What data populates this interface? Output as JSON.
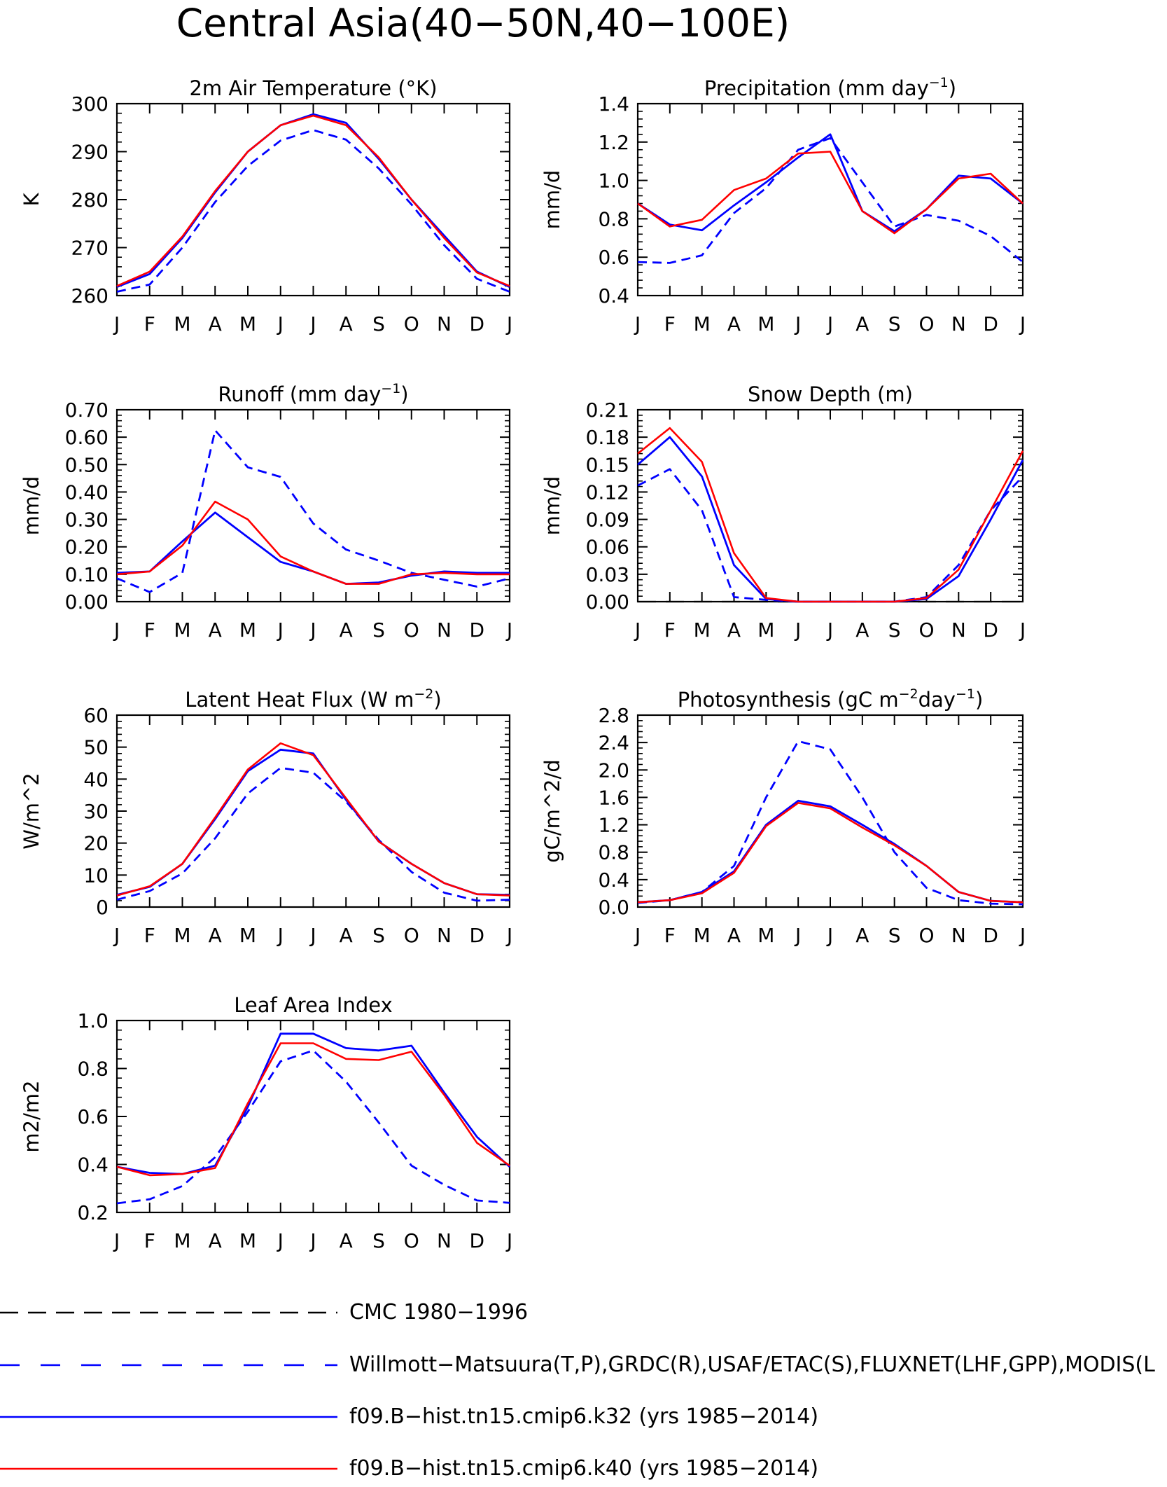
{
  "figure": {
    "title": "Central Asia(40−50N,40−100E)",
    "months": [
      "J",
      "F",
      "M",
      "A",
      "M",
      "J",
      "J",
      "A",
      "S",
      "O",
      "N",
      "D",
      "J"
    ]
  },
  "legend": [
    {
      "label": "CMC 1980−1996",
      "color": "#000000",
      "style": "dashed-long"
    },
    {
      "label": "Willmott−Matsuura(T,P),GRDC(R),USAF/ETAC(S),FLUXNET(LHF,GPP),MODIS(L",
      "color": "#0000ff",
      "style": "dashed"
    },
    {
      "label": "f09.B−hist.tn15.cmip6.k32 (yrs 1985−2014)",
      "color": "#0000ff",
      "style": "solid"
    },
    {
      "label": "f09.B−hist.tn15.cmip6.k40 (yrs 1985−2014)",
      "color": "#ff0000",
      "style": "solid"
    }
  ],
  "chart_data": [
    {
      "type": "line",
      "title": "2m Air Temperature (°K)",
      "ylabel": "K",
      "ylim": [
        260,
        300
      ],
      "yticks": [
        "260",
        "270",
        "280",
        "290",
        "300"
      ],
      "x": [
        "J",
        "F",
        "M",
        "A",
        "M",
        "J",
        "J",
        "A",
        "S",
        "O",
        "N",
        "D",
        "J"
      ],
      "series": [
        {
          "style": "obs",
          "color": "#0000ff",
          "values": [
            260.8,
            262.3,
            270.0,
            279.5,
            287.0,
            292.3,
            294.5,
            292.5,
            286.5,
            279.0,
            270.5,
            263.5,
            260.8
          ]
        },
        {
          "style": "k32",
          "color": "#0000ff",
          "values": [
            261.8,
            264.5,
            272.0,
            281.5,
            290.0,
            295.5,
            297.8,
            296.0,
            288.5,
            280.0,
            272.5,
            265.0,
            261.8
          ]
        },
        {
          "style": "k40",
          "color": "#ff0000",
          "values": [
            262.0,
            265.0,
            272.3,
            281.8,
            290.0,
            295.5,
            297.5,
            295.5,
            288.8,
            280.0,
            272.0,
            264.8,
            262.0
          ]
        }
      ]
    },
    {
      "type": "line",
      "title": "Precipitation (mm day",
      "title_sup": "−1",
      "title_end": ")",
      "ylabel": "mm/d",
      "ylim": [
        0.4,
        1.4
      ],
      "yticks": [
        "0.4",
        "0.6",
        "0.8",
        "1.0",
        "1.2",
        "1.4"
      ],
      "x": [
        "J",
        "F",
        "M",
        "A",
        "M",
        "J",
        "J",
        "A",
        "S",
        "O",
        "N",
        "D",
        "J"
      ],
      "series": [
        {
          "style": "obs",
          "color": "#0000ff",
          "values": [
            0.575,
            0.57,
            0.61,
            0.83,
            0.96,
            1.16,
            1.22,
            0.99,
            0.76,
            0.82,
            0.79,
            0.71,
            0.575
          ]
        },
        {
          "style": "k32",
          "color": "#0000ff",
          "values": [
            0.88,
            0.77,
            0.74,
            0.87,
            0.99,
            1.12,
            1.24,
            0.84,
            0.735,
            0.85,
            1.025,
            1.01,
            0.88
          ]
        },
        {
          "style": "k40",
          "color": "#ff0000",
          "values": [
            0.88,
            0.76,
            0.795,
            0.95,
            1.01,
            1.14,
            1.15,
            0.84,
            0.725,
            0.85,
            1.01,
            1.035,
            0.88
          ]
        }
      ]
    },
    {
      "type": "line",
      "title": "Runoff (mm day",
      "title_sup": "−1",
      "title_end": ")",
      "ylabel": "mm/d",
      "ylim": [
        0.0,
        0.7
      ],
      "yticks": [
        "0.00",
        "0.10",
        "0.20",
        "0.30",
        "0.40",
        "0.50",
        "0.60",
        "0.70"
      ],
      "x": [
        "J",
        "F",
        "M",
        "A",
        "M",
        "J",
        "J",
        "A",
        "S",
        "O",
        "N",
        "D",
        "J"
      ],
      "series": [
        {
          "style": "obs",
          "color": "#0000ff",
          "values": [
            0.085,
            0.035,
            0.105,
            0.625,
            0.49,
            0.455,
            0.285,
            0.19,
            0.15,
            0.105,
            0.08,
            0.055,
            0.085
          ]
        },
        {
          "style": "k32",
          "color": "#0000ff",
          "values": [
            0.105,
            0.11,
            0.22,
            0.325,
            0.235,
            0.145,
            0.11,
            0.065,
            0.07,
            0.095,
            0.11,
            0.105,
            0.105
          ]
        },
        {
          "style": "k40",
          "color": "#ff0000",
          "values": [
            0.1,
            0.11,
            0.205,
            0.365,
            0.3,
            0.165,
            0.11,
            0.065,
            0.065,
            0.1,
            0.105,
            0.1,
            0.1
          ]
        }
      ]
    },
    {
      "type": "line",
      "title": "Snow Depth (m)",
      "ylabel": "mm/d",
      "ylim": [
        0.0,
        0.21
      ],
      "yticks": [
        "0.00",
        "0.03",
        "0.06",
        "0.09",
        "0.12",
        "0.15",
        "0.18",
        "0.21"
      ],
      "x": [
        "J",
        "F",
        "M",
        "A",
        "M",
        "J",
        "J",
        "A",
        "S",
        "O",
        "N",
        "D",
        "J"
      ],
      "series": [
        {
          "style": "cmc",
          "color": "#000000",
          "values": [
            0,
            0,
            0,
            0,
            0,
            0,
            0,
            0,
            0,
            0,
            0,
            0,
            0
          ]
        },
        {
          "style": "obs",
          "color": "#0000ff",
          "values": [
            0.127,
            0.145,
            0.1,
            0.005,
            0.002,
            0.0,
            0.0,
            0.0,
            0.0,
            0.005,
            0.04,
            0.1,
            0.137
          ]
        },
        {
          "style": "k32",
          "color": "#0000ff",
          "values": [
            0.15,
            0.18,
            0.137,
            0.04,
            0.003,
            0.0,
            0.0,
            0.0,
            0.0,
            0.003,
            0.028,
            0.09,
            0.155
          ]
        },
        {
          "style": "k40",
          "color": "#ff0000",
          "values": [
            0.162,
            0.19,
            0.153,
            0.053,
            0.004,
            0.0,
            0.0,
            0.0,
            0.0,
            0.004,
            0.035,
            0.1,
            0.165
          ]
        }
      ]
    },
    {
      "type": "line",
      "title": "Latent Heat Flux (W m",
      "title_sup": "−2",
      "title_end": ")",
      "ylabel": "W/m^2",
      "ylim": [
        0,
        60
      ],
      "yticks": [
        "0",
        "10",
        "20",
        "30",
        "40",
        "50",
        "60"
      ],
      "x": [
        "J",
        "F",
        "M",
        "A",
        "M",
        "J",
        "J",
        "A",
        "S",
        "O",
        "N",
        "D",
        "J"
      ],
      "series": [
        {
          "style": "obs",
          "color": "#0000ff",
          "values": [
            2.3,
            5.0,
            10.5,
            21.5,
            35.5,
            43.5,
            42.0,
            33.0,
            21.0,
            11.0,
            4.5,
            2.0,
            2.3
          ]
        },
        {
          "style": "k32",
          "color": "#0000ff",
          "values": [
            3.8,
            6.3,
            13.5,
            27.5,
            42.5,
            49.2,
            48.0,
            33.5,
            20.5,
            13.5,
            7.5,
            4.0,
            3.8
          ]
        },
        {
          "style": "k40",
          "color": "#ff0000",
          "values": [
            3.6,
            6.5,
            13.5,
            28.0,
            43.0,
            51.2,
            47.5,
            34.0,
            20.5,
            13.5,
            7.5,
            4.0,
            3.6
          ]
        }
      ]
    },
    {
      "type": "line",
      "title": "Photosynthesis (gC m",
      "title_sup": "−2",
      "title_mid": "day",
      "title_sup2": "−1",
      "title_end": ")",
      "ylabel": "gC/m^2/d",
      "ylim": [
        0.0,
        2.8
      ],
      "yticks": [
        "0.0",
        "0.4",
        "0.8",
        "1.2",
        "1.6",
        "2.0",
        "2.4",
        "2.8"
      ],
      "x": [
        "J",
        "F",
        "M",
        "A",
        "M",
        "J",
        "J",
        "A",
        "S",
        "O",
        "N",
        "D",
        "J"
      ],
      "series": [
        {
          "style": "obs",
          "color": "#0000ff",
          "values": [
            0.06,
            0.1,
            0.22,
            0.6,
            1.6,
            2.42,
            2.3,
            1.6,
            0.8,
            0.28,
            0.1,
            0.05,
            0.04
          ]
        },
        {
          "style": "k32",
          "color": "#0000ff",
          "values": [
            0.07,
            0.1,
            0.22,
            0.52,
            1.2,
            1.55,
            1.47,
            1.2,
            0.92,
            0.6,
            0.22,
            0.09,
            0.07
          ]
        },
        {
          "style": "k40",
          "color": "#ff0000",
          "values": [
            0.07,
            0.1,
            0.2,
            0.5,
            1.18,
            1.52,
            1.44,
            1.16,
            0.9,
            0.6,
            0.22,
            0.09,
            0.07
          ]
        }
      ]
    },
    {
      "type": "line",
      "title": "Leaf Area Index",
      "ylabel": "m2/m2",
      "ylim": [
        0.2,
        1.0
      ],
      "yticks": [
        "0.2",
        "0.4",
        "0.6",
        "0.8",
        "1.0"
      ],
      "x": [
        "J",
        "F",
        "M",
        "A",
        "M",
        "J",
        "J",
        "A",
        "S",
        "O",
        "N",
        "D",
        "J"
      ],
      "series": [
        {
          "style": "obs",
          "color": "#0000ff",
          "values": [
            0.238,
            0.255,
            0.31,
            0.43,
            0.62,
            0.83,
            0.875,
            0.745,
            0.575,
            0.395,
            0.315,
            0.25,
            0.24
          ]
        },
        {
          "style": "k32",
          "color": "#0000ff",
          "values": [
            0.39,
            0.365,
            0.36,
            0.395,
            0.64,
            0.945,
            0.945,
            0.885,
            0.875,
            0.895,
            0.7,
            0.515,
            0.39
          ]
        },
        {
          "style": "k40",
          "color": "#ff0000",
          "values": [
            0.39,
            0.355,
            0.36,
            0.385,
            0.655,
            0.905,
            0.905,
            0.84,
            0.835,
            0.87,
            0.69,
            0.49,
            0.395
          ]
        }
      ]
    }
  ]
}
